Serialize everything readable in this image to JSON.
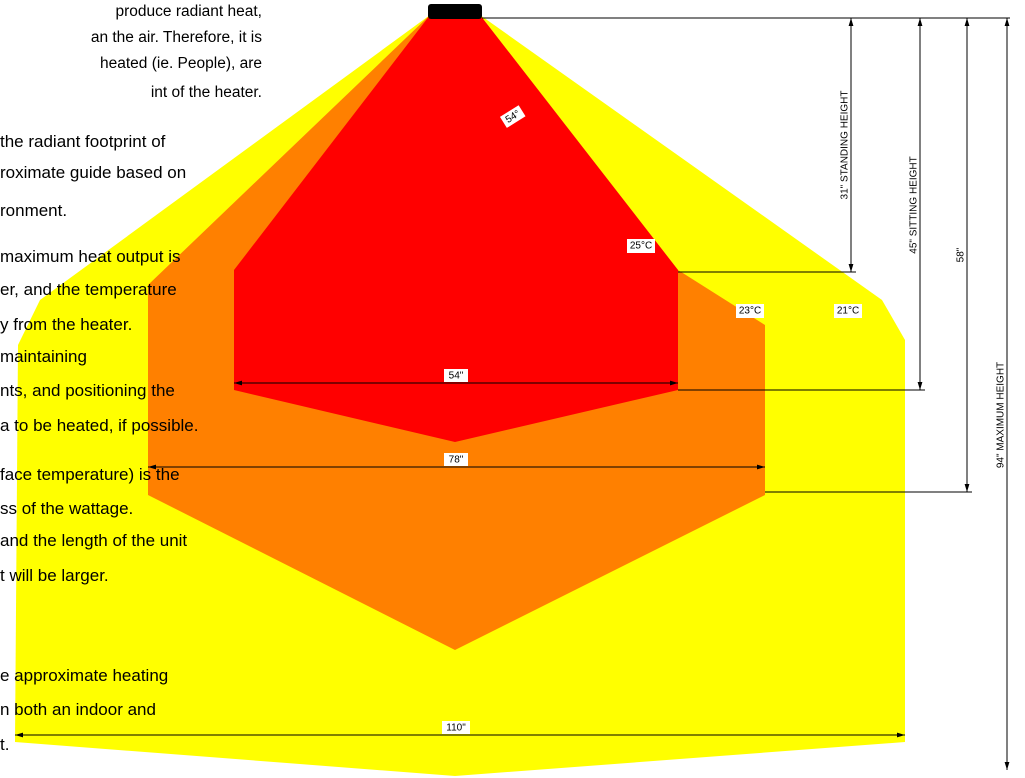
{
  "paragraph": {
    "lines": [
      "produce radiant heat,",
      "an the air. Therefore, it is",
      "heated (ie. People), are",
      "int of the heater.",
      "the radiant footprint of",
      "roximate guide based on",
      "ronment.",
      "maximum heat output is",
      "er, and the temperature",
      "y from the heater.",
      "maintaining",
      "nts, and positioning the",
      "a to be heated, if possible.",
      "face temperature) is the",
      "ss of the wattage.",
      "and the length of the unit",
      "t will be larger.",
      "e approximate heating",
      "n both an indoor and",
      "t."
    ]
  },
  "diagram": {
    "angle": "54°",
    "zones": [
      "25°C",
      "23°C",
      "21°C"
    ],
    "widths": [
      "54\"",
      "78\"",
      "110\""
    ],
    "heights": [
      "31\" STANDING HEIGHT",
      "45\" SITTING HEIGHT",
      "58\"",
      "94\" MAXIMUM HEIGHT"
    ]
  }
}
